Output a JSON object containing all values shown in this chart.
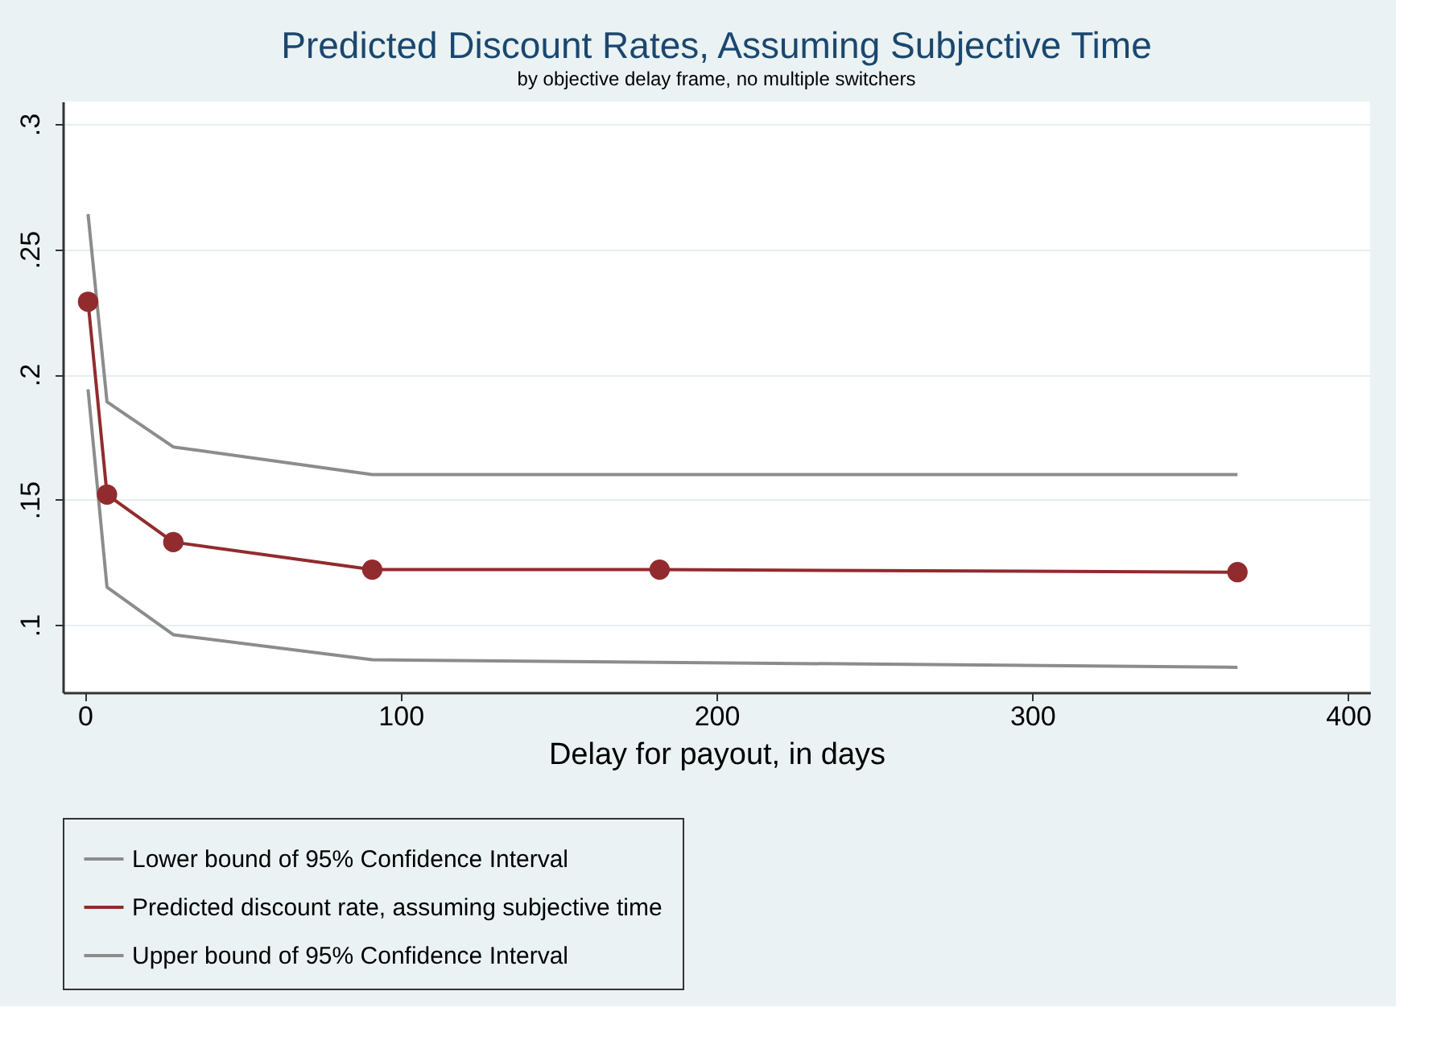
{
  "chart_data": {
    "type": "line",
    "title": "Predicted Discount Rates, Assuming Subjective Time",
    "subtitle": "by objective delay frame, no multiple switchers",
    "xlabel": "Delay for payout, in days",
    "x": [
      1,
      7,
      28,
      91,
      182,
      365
    ],
    "series": [
      {
        "name": "Lower bound of 95% Confidence Interval",
        "color": "#8c8c8c",
        "x": [
          1,
          7,
          28,
          91,
          365
        ],
        "values": [
          0.194,
          0.115,
          0.096,
          0.086,
          0.083
        ],
        "marker": "none"
      },
      {
        "name": "Predicted discount rate, assuming subjective time",
        "color": "#922b2e",
        "values": [
          0.229,
          0.152,
          0.133,
          0.122,
          0.122,
          0.121
        ],
        "marker": "circle"
      },
      {
        "name": "Upper bound of 95% Confidence Interval",
        "color": "#8c8c8c",
        "x": [
          1,
          7,
          28,
          91,
          365
        ],
        "values": [
          0.264,
          0.189,
          0.171,
          0.16,
          0.16
        ],
        "marker": "none"
      }
    ],
    "xlim": [
      -7,
      407
    ],
    "xticks": [
      0,
      100,
      200,
      300,
      400
    ],
    "ylim": [
      0.073,
      0.309
    ],
    "yticks": [
      {
        "value": 0.1,
        "label": ".1"
      },
      {
        "value": 0.15,
        "label": ".15"
      },
      {
        "value": 0.2,
        "label": ".2"
      },
      {
        "value": 0.25,
        "label": ".25"
      },
      {
        "value": 0.3,
        "label": ".3"
      }
    ],
    "grid": "y",
    "legend": "bottom",
    "line_style": "solid"
  }
}
